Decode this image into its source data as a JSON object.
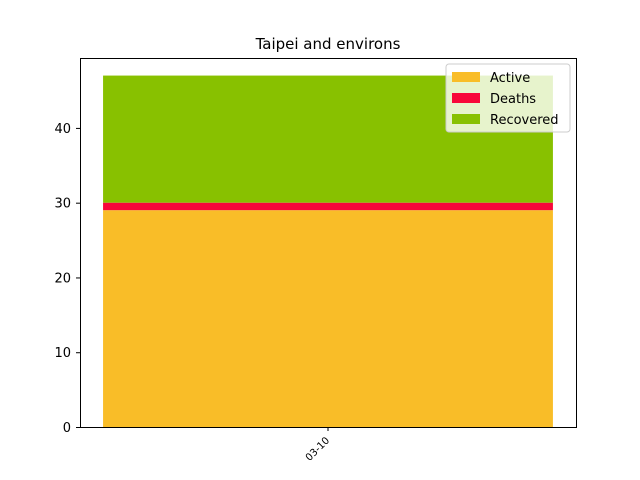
{
  "chart_data": {
    "type": "bar",
    "stacked": true,
    "title": "Taipei and environs",
    "xlabel": "",
    "ylabel": "",
    "categories": [
      "03-10"
    ],
    "series": [
      {
        "name": "Active",
        "values": [
          29
        ],
        "color": "#f9bd28"
      },
      {
        "name": "Deaths",
        "values": [
          1
        ],
        "color": "#f8083a"
      },
      {
        "name": "Recovered",
        "values": [
          17
        ],
        "color": "#88c100"
      }
    ],
    "ylim": [
      0,
      49.35
    ],
    "yticks": [
      0,
      10,
      20,
      30,
      40
    ],
    "grid": false,
    "legend": "top-right"
  }
}
